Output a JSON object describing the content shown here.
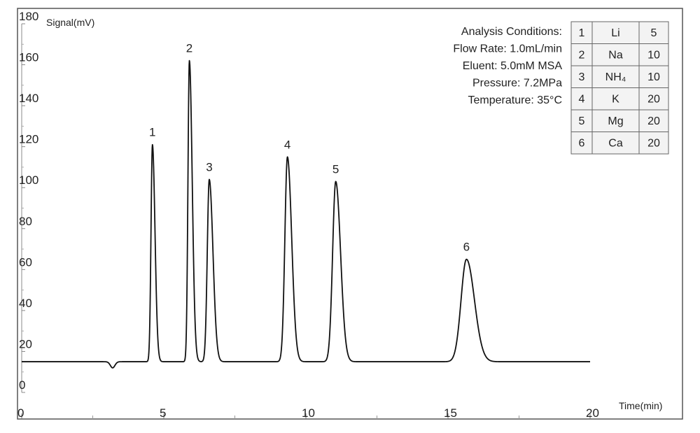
{
  "chart_data": {
    "type": "line",
    "ylabel": "Signal(mV)",
    "xlabel": "Time(min)",
    "xlim": [
      0,
      20
    ],
    "ylim": [
      0,
      180
    ],
    "x_ticks": [
      "0",
      "5",
      "10",
      "15",
      "20"
    ],
    "y_ticks": [
      "0",
      "20",
      "40",
      "60",
      "80",
      "100",
      "120",
      "140",
      "160",
      "180"
    ],
    "y_tick_values": [
      0,
      20,
      40,
      60,
      80,
      100,
      120,
      140,
      160,
      180
    ],
    "x_tick_values": [
      0,
      5,
      10,
      15,
      20
    ],
    "baseline": 15,
    "dip": {
      "x": 3.2,
      "depth": 3.0,
      "width": 0.08
    },
    "peaks": [
      {
        "label": "1",
        "x": 4.6,
        "y": 121,
        "sigma_left": 0.05,
        "sigma_right": 0.09
      },
      {
        "label": "2",
        "x": 5.9,
        "y": 162,
        "sigma_left": 0.05,
        "sigma_right": 0.1
      },
      {
        "label": "3",
        "x": 6.6,
        "y": 104,
        "sigma_left": 0.07,
        "sigma_right": 0.13
      },
      {
        "label": "4",
        "x": 9.35,
        "y": 115,
        "sigma_left": 0.09,
        "sigma_right": 0.15
      },
      {
        "label": "5",
        "x": 11.05,
        "y": 103,
        "sigma_left": 0.11,
        "sigma_right": 0.17
      },
      {
        "label": "6",
        "x": 15.65,
        "y": 65,
        "sigma_left": 0.19,
        "sigma_right": 0.28
      }
    ],
    "conditions": [
      "Analysis Conditions:",
      "Flow Rate: 1.0mL/min",
      "Eluent: 5.0mM MSA",
      "Pressure: 7.2MPa",
      "Temperature: 35°C"
    ],
    "table": [
      [
        "1",
        "Li",
        "5"
      ],
      [
        "2",
        "Na",
        "10"
      ],
      [
        "3",
        "NH₄",
        "10"
      ],
      [
        "4",
        "K",
        "20"
      ],
      [
        "5",
        "Mg",
        "20"
      ],
      [
        "6",
        "Ca",
        "20"
      ]
    ],
    "line_color": "#111111",
    "frame_color": "#555555",
    "table_fill": "#f3f3f3"
  }
}
